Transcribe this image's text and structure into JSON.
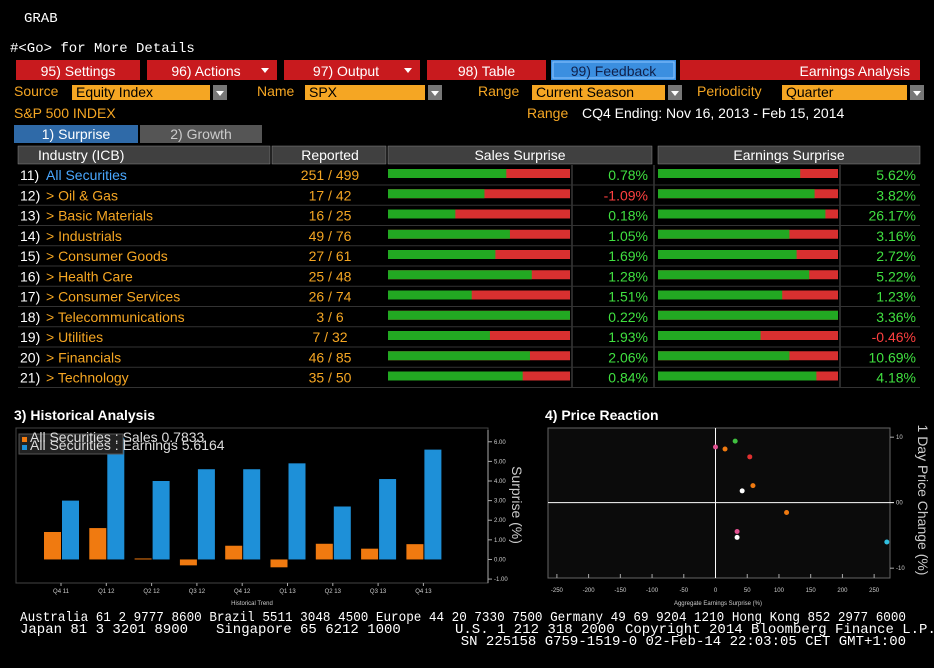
{
  "header": {
    "title": "GRAB",
    "subtitle": "#<Go> for More Details"
  },
  "menu": [
    "95) Settings",
    "96) Actions",
    "97) Output",
    "98) Table",
    "99) Feedback",
    "Earnings Analysis"
  ],
  "filters": {
    "source_label": "Source",
    "source": "Equity Index",
    "name_label": "Name",
    "name": "SPX",
    "range_label": "Range",
    "range": "Current Season",
    "periodicity_label": "Periodicity",
    "periodicity": "Quarter"
  },
  "index": {
    "name": "S&P 500 INDEX",
    "range_label": "Range",
    "range": "CQ4 Ending: Nov 16, 2013 - Feb 15, 2014"
  },
  "tabs": [
    "1) Surprise",
    "2) Growth"
  ],
  "table": {
    "columns": [
      "Industry (ICB)",
      "Reported",
      "Sales Surprise",
      "Earnings Surprise"
    ],
    "rows": [
      {
        "num": "11)",
        "name": "All Securities",
        "reported": "251 / 499",
        "sales_beat": 65,
        "sales": "0.78%",
        "earnings_beat": 79,
        "earnings": "5.62%"
      },
      {
        "num": "12)",
        "name": "> Oil & Gas",
        "reported": "17 / 42",
        "sales_beat": 53,
        "sales": "-1.09%",
        "earnings_beat": 87,
        "earnings": "3.82%"
      },
      {
        "num": "13)",
        "name": "> Basic Materials",
        "reported": "16 / 25",
        "sales_beat": 37,
        "sales": "0.18%",
        "earnings_beat": 93,
        "earnings": "26.17%"
      },
      {
        "num": "14)",
        "name": "> Industrials",
        "reported": "49 / 76",
        "sales_beat": 67,
        "sales": "1.05%",
        "earnings_beat": 73,
        "earnings": "3.16%"
      },
      {
        "num": "15)",
        "name": "> Consumer Goods",
        "reported": "27 / 61",
        "sales_beat": 59,
        "sales": "1.69%",
        "earnings_beat": 77,
        "earnings": "2.72%"
      },
      {
        "num": "16)",
        "name": "> Health Care",
        "reported": "25 / 48",
        "sales_beat": 79,
        "sales": "1.28%",
        "earnings_beat": 84,
        "earnings": "5.22%"
      },
      {
        "num": "17)",
        "name": "> Consumer Services",
        "reported": "26 / 74",
        "sales_beat": 46,
        "sales": "1.51%",
        "earnings_beat": 69,
        "earnings": "1.23%"
      },
      {
        "num": "18)",
        "name": "> Telecommunications",
        "reported": "3 / 6",
        "sales_beat": 100,
        "sales": "0.22%",
        "earnings_beat": 100,
        "earnings": "3.36%"
      },
      {
        "num": "19)",
        "name": "> Utilities",
        "reported": "7 / 32",
        "sales_beat": 56,
        "sales": "1.93%",
        "earnings_beat": 57,
        "earnings": "-0.46%"
      },
      {
        "num": "20)",
        "name": "> Financials",
        "reported": "46 / 85",
        "sales_beat": 78,
        "sales": "2.06%",
        "earnings_beat": 73,
        "earnings": "10.69%"
      },
      {
        "num": "21)",
        "name": "> Technology",
        "reported": "35 / 50",
        "sales_beat": 74,
        "sales": "0.84%",
        "earnings_beat": 88,
        "earnings": "4.18%"
      }
    ]
  },
  "chart_data": [
    {
      "type": "bar",
      "title": "3) Historical Analysis",
      "categories": [
        "Q4 11",
        "Q1 12",
        "Q2 12",
        "Q3 12",
        "Q4 12",
        "Q1 13",
        "Q2 13",
        "Q3 13",
        "Q4 13"
      ],
      "series": [
        {
          "name": "All Securities : Sales 0.7833",
          "color": "#f07a10",
          "values": [
            1.4,
            1.6,
            0.05,
            -0.3,
            0.7,
            -0.4,
            0.8,
            0.55,
            0.78
          ]
        },
        {
          "name": "All Securities : Earnings 5.6164",
          "color": "#1e90d8",
          "values": [
            3.0,
            6.2,
            4.0,
            4.6,
            4.6,
            4.9,
            2.7,
            4.1,
            5.6
          ]
        }
      ],
      "ylim": [
        -1.2,
        6.6
      ],
      "yticks": [
        {
          "value": -1,
          "label": "-1.00"
        },
        {
          "value": 0,
          "label": "0.00"
        },
        {
          "value": 1,
          "label": "1.00"
        },
        {
          "value": 2,
          "label": "2.00"
        },
        {
          "value": 3,
          "label": "3.00"
        },
        {
          "value": 4,
          "label": "4.00"
        },
        {
          "value": 5,
          "label": "5.00"
        },
        {
          "value": 6,
          "label": "6.00"
        }
      ],
      "ylabel": "Surprise (%)",
      "xlabel": "Historical Trend"
    },
    {
      "type": "scatter",
      "title": "4) Price Reaction",
      "x": [
        0,
        15,
        31,
        54,
        59,
        42,
        112,
        34,
        34,
        270
      ],
      "values": [
        8.5,
        8.2,
        9.4,
        7,
        2.6,
        1.8,
        -1.5,
        -4.4,
        -5.3,
        -6
      ],
      "colors": [
        "#e05090",
        "#f07a10",
        "#40c040",
        "#e03030",
        "#f07a10",
        "#ffffff",
        "#f07a10",
        "#e05090",
        "#ffffff",
        "#30c0e0"
      ],
      "xlim": [
        -264,
        275
      ],
      "ylim": [
        -11.5,
        11.4
      ],
      "xticks": [
        -250,
        -200,
        -150,
        -100,
        -50,
        0,
        50,
        100,
        150,
        200,
        250
      ],
      "yticks": [
        -10,
        {
          "value": 0,
          "label": "00"
        },
        10
      ],
      "xlabel": "Aggregate Earnings Surprise (%)",
      "ylabel": "1 Day Price Change (%)"
    }
  ],
  "footer": {
    "line1": "Australia 61 2 9777 8600 Brazil 5511 3048 4500 Europe 44 20 7330 7500 Germany 49 69 9204 1210 Hong Kong 852 2977 6000",
    "line2": [
      "Japan 81 3 3201 8900",
      "Singapore 65 6212 1000",
      "U.S. 1 212 318 2000",
      "Copyright 2014 Bloomberg Finance L.P."
    ],
    "line3": "SN 225158 G759-1519-0 02-Feb-14 22:03:05 CET  GMT+1:00"
  }
}
